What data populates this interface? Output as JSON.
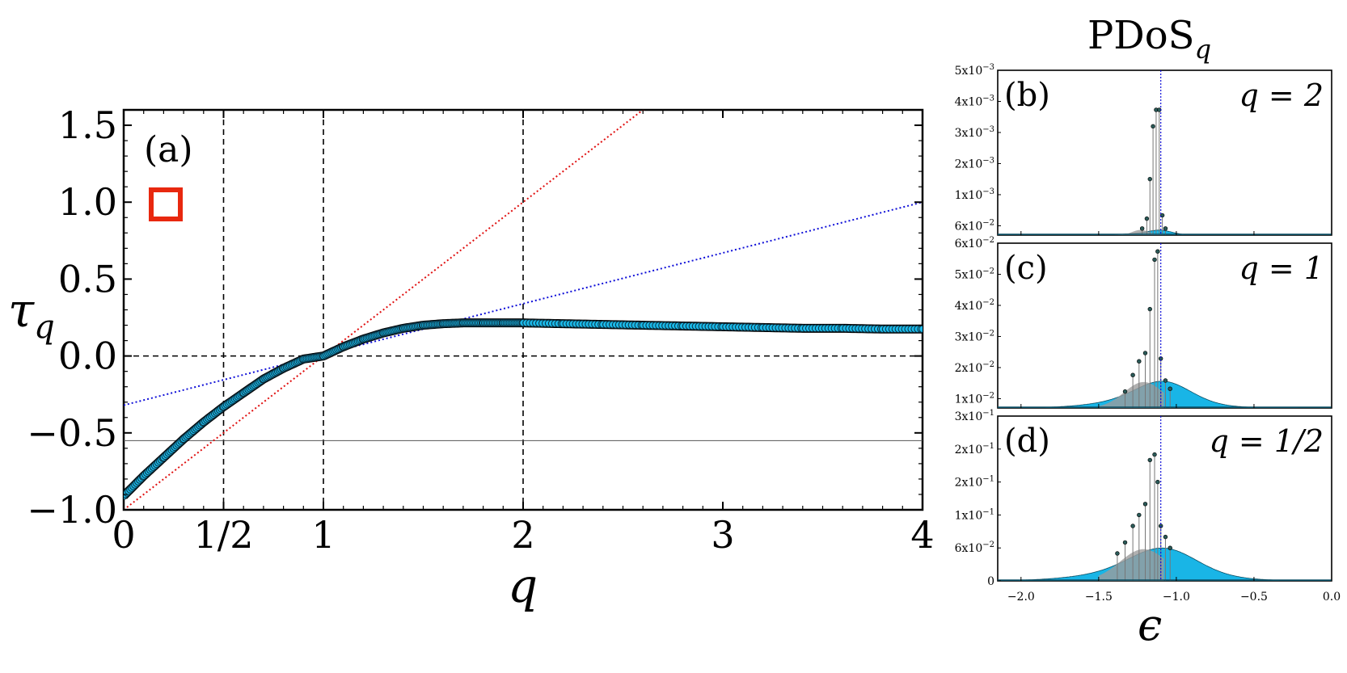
{
  "panel_a": {
    "label": "(a)",
    "ylabel": "τ",
    "ylabel_sub": "q",
    "xlabel": "q",
    "ytick_labels": [
      "1.5",
      "1.0",
      "0.5",
      "0.0",
      "−0.5",
      "−1.0"
    ],
    "xtick_labels": [
      "0",
      "1/2",
      "1",
      "2",
      "3",
      "4"
    ],
    "marker_color": "#e8280f"
  },
  "right_title": "PDoS",
  "right_title_sub": "q",
  "right_xlabel": "ϵ",
  "right_xtick_labels": [
    "−2.0",
    "−1.5",
    "−1.0",
    "−0.5",
    "0.0"
  ],
  "chart_data": [
    {
      "type": "scatter",
      "title": "",
      "xlabel": "q",
      "ylabel": "τ_q",
      "xlim": [
        0,
        4
      ],
      "ylim": [
        -1.0,
        1.6
      ],
      "xticks": [
        0,
        0.5,
        1,
        2,
        3,
        4
      ],
      "yticks": [
        -1.0,
        -0.5,
        0.0,
        0.5,
        1.0,
        1.5
      ],
      "reference_lines": {
        "vertical_dashed": [
          0.5,
          1,
          2
        ],
        "horizontal_dashed": [
          0.0
        ],
        "horizontal_thin": [
          -0.55
        ],
        "red_dotted": {
          "slope": 1.0,
          "intercept": -1.0
        },
        "blue_dotted": {
          "slope": 0.33,
          "intercept": -0.32
        }
      },
      "series": [
        {
          "color": "#1ab8e8",
          "x": [
            0.0,
            0.1,
            0.2,
            0.3,
            0.4,
            0.5,
            0.6,
            0.7,
            0.8,
            0.9,
            1.0,
            1.1,
            1.2,
            1.3,
            1.4,
            1.5,
            1.6,
            1.7,
            1.8,
            1.9,
            2.0,
            2.2,
            2.4,
            2.6,
            2.8,
            3.0,
            3.2,
            3.4,
            3.6,
            3.8,
            4.0
          ],
          "y": [
            -0.91,
            -0.78,
            -0.66,
            -0.54,
            -0.43,
            -0.33,
            -0.24,
            -0.15,
            -0.08,
            -0.02,
            0.0,
            0.06,
            0.11,
            0.15,
            0.18,
            0.2,
            0.21,
            0.215,
            0.215,
            0.215,
            0.215,
            0.21,
            0.205,
            0.2,
            0.195,
            0.19,
            0.185,
            0.18,
            0.18,
            0.175,
            0.175
          ]
        }
      ]
    },
    {
      "type": "bar",
      "panel_label": "(b)",
      "annotation": "q = 2",
      "xlabel": "ϵ",
      "xlim": [
        -2.15,
        0.0
      ],
      "ylim": [
        0,
        0.005
      ],
      "ytick_labels": [
        "5x10",
        "4x10",
        "3x10",
        "2x10",
        "1x10",
        "6x10"
      ],
      "ytick_exps": [
        "−3",
        "−3",
        "−3",
        "−3",
        "−3",
        "−2"
      ],
      "vline": -1.1,
      "spikes": {
        "x": [
          -1.22,
          -1.19,
          -1.17,
          -1.15,
          -1.13,
          -1.11,
          -1.09,
          -1.07
        ],
        "y": [
          0.0002,
          0.0005,
          0.0017,
          0.0033,
          0.0038,
          0.0038,
          0.0006,
          0.0002
        ]
      },
      "background": {
        "center": -1.15,
        "width": 0.06,
        "height": 0.00015
      }
    },
    {
      "type": "bar",
      "panel_label": "(c)",
      "annotation": "q = 1",
      "xlabel": "ϵ",
      "xlim": [
        -2.15,
        0.0
      ],
      "ylim": [
        0,
        0.06
      ],
      "ytick_labels": [
        "6x10",
        "5x10",
        "4x10",
        "3x10",
        "2x10",
        "1x10"
      ],
      "ytick_exps": [
        "−2",
        "−2",
        "−2",
        "−2",
        "−2",
        "−2"
      ],
      "vline": -1.1,
      "spikes": {
        "x": [
          -1.33,
          -1.28,
          -1.24,
          -1.2,
          -1.17,
          -1.14,
          -1.12,
          -1.1,
          -1.07,
          -1.04
        ],
        "y": [
          0.006,
          0.012,
          0.017,
          0.02,
          0.036,
          0.054,
          0.057,
          0.018,
          0.01,
          0.007
        ]
      },
      "background": {
        "center": -1.13,
        "width": 0.14,
        "height": 0.009
      }
    },
    {
      "type": "bar",
      "panel_label": "(d)",
      "annotation": "q = 1/2",
      "xlabel": "ϵ",
      "xlim": [
        -2.15,
        0.0
      ],
      "ylim": [
        0,
        0.3
      ],
      "ytick_labels": [
        "3x10",
        "2x10",
        "2x10",
        "1x10",
        "6x10",
        "0"
      ],
      "ytick_exps": [
        "−1",
        "−1",
        "−1",
        "−1",
        "−2",
        ""
      ],
      "vline": -1.1,
      "spikes": {
        "x": [
          -1.38,
          -1.33,
          -1.28,
          -1.24,
          -1.2,
          -1.17,
          -1.14,
          -1.12,
          -1.1,
          -1.07,
          -1.04
        ],
        "y": [
          0.05,
          0.07,
          0.1,
          0.12,
          0.14,
          0.22,
          0.23,
          0.18,
          0.1,
          0.08,
          0.06
        ]
      },
      "background": {
        "center": -1.13,
        "width": 0.17,
        "height": 0.055
      }
    }
  ]
}
